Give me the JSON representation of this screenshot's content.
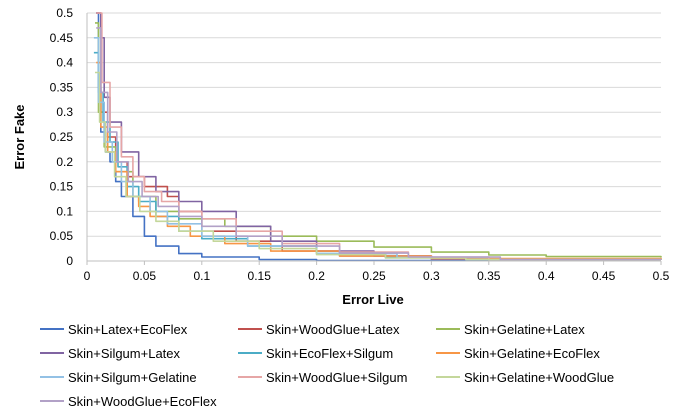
{
  "chart_data": {
    "type": "line",
    "title": "",
    "xlabel": "Error Live",
    "ylabel": "Error Fake",
    "xlim": [
      0,
      0.5
    ],
    "ylim": [
      0,
      0.5
    ],
    "x_ticks": [
      "0",
      "0.05",
      "0.1",
      "0.15",
      "0.2",
      "0.25",
      "0.3",
      "0.35",
      "0.4",
      "0.45",
      "0.5"
    ],
    "y_ticks": [
      "0",
      "0.05",
      "0.1",
      "0.15",
      "0.2",
      "0.25",
      "0.3",
      "0.35",
      "0.4",
      "0.45",
      "0.5"
    ],
    "grid": "horizontal",
    "legend_position": "bottom",
    "series": [
      {
        "name": "Skin+Latex+EcoFlex",
        "color": "#4472c4",
        "points": [
          [
            0.008,
            0.5
          ],
          [
            0.01,
            0.35
          ],
          [
            0.012,
            0.26
          ],
          [
            0.016,
            0.22
          ],
          [
            0.02,
            0.2
          ],
          [
            0.025,
            0.16
          ],
          [
            0.03,
            0.13
          ],
          [
            0.04,
            0.09
          ],
          [
            0.05,
            0.05
          ],
          [
            0.06,
            0.03
          ],
          [
            0.08,
            0.015
          ],
          [
            0.1,
            0.008
          ],
          [
            0.15,
            0.003
          ],
          [
            0.2,
            0.001
          ],
          [
            0.5,
            0.001
          ]
        ]
      },
      {
        "name": "Skin+WoodGlue+Latex",
        "color": "#c0504d",
        "points": [
          [
            0.008,
            0.5
          ],
          [
            0.012,
            0.3
          ],
          [
            0.018,
            0.25
          ],
          [
            0.025,
            0.2
          ],
          [
            0.035,
            0.17
          ],
          [
            0.05,
            0.15
          ],
          [
            0.07,
            0.13
          ],
          [
            0.08,
            0.1
          ],
          [
            0.1,
            0.06
          ],
          [
            0.13,
            0.04
          ],
          [
            0.17,
            0.02
          ],
          [
            0.22,
            0.01
          ],
          [
            0.3,
            0.004
          ],
          [
            0.5,
            0.002
          ]
        ]
      },
      {
        "name": "Skin+Gelatine+Latex",
        "color": "#9bbb59",
        "points": [
          [
            0.007,
            0.48
          ],
          [
            0.01,
            0.3
          ],
          [
            0.015,
            0.23
          ],
          [
            0.025,
            0.18
          ],
          [
            0.04,
            0.13
          ],
          [
            0.06,
            0.1
          ],
          [
            0.08,
            0.085
          ],
          [
            0.12,
            0.07
          ],
          [
            0.16,
            0.05
          ],
          [
            0.2,
            0.04
          ],
          [
            0.25,
            0.028
          ],
          [
            0.3,
            0.018
          ],
          [
            0.35,
            0.012
          ],
          [
            0.4,
            0.009
          ],
          [
            0.5,
            0.007
          ]
        ]
      },
      {
        "name": "Skin+Silgum+Latex",
        "color": "#8064a2",
        "points": [
          [
            0.008,
            0.5
          ],
          [
            0.012,
            0.45
          ],
          [
            0.015,
            0.33
          ],
          [
            0.02,
            0.28
          ],
          [
            0.03,
            0.22
          ],
          [
            0.045,
            0.17
          ],
          [
            0.06,
            0.14
          ],
          [
            0.08,
            0.12
          ],
          [
            0.1,
            0.1
          ],
          [
            0.13,
            0.07
          ],
          [
            0.16,
            0.04
          ],
          [
            0.2,
            0.02
          ],
          [
            0.25,
            0.01
          ],
          [
            0.3,
            0.004
          ],
          [
            0.5,
            0.002
          ]
        ]
      },
      {
        "name": "Skin+EcoFlex+Silgum",
        "color": "#4bacc6",
        "points": [
          [
            0.006,
            0.42
          ],
          [
            0.01,
            0.34
          ],
          [
            0.014,
            0.28
          ],
          [
            0.02,
            0.24
          ],
          [
            0.027,
            0.19
          ],
          [
            0.035,
            0.15
          ],
          [
            0.045,
            0.12
          ],
          [
            0.06,
            0.09
          ],
          [
            0.08,
            0.06
          ],
          [
            0.1,
            0.045
          ],
          [
            0.14,
            0.03
          ],
          [
            0.2,
            0.015
          ],
          [
            0.26,
            0.007
          ],
          [
            0.35,
            0.003
          ],
          [
            0.5,
            0.002
          ]
        ]
      },
      {
        "name": "Skin+Gelatine+EcoFlex",
        "color": "#f79646",
        "points": [
          [
            0.008,
            0.4
          ],
          [
            0.012,
            0.27
          ],
          [
            0.018,
            0.22
          ],
          [
            0.025,
            0.18
          ],
          [
            0.035,
            0.13
          ],
          [
            0.045,
            0.11
          ],
          [
            0.055,
            0.09
          ],
          [
            0.07,
            0.07
          ],
          [
            0.09,
            0.05
          ],
          [
            0.12,
            0.035
          ],
          [
            0.16,
            0.02
          ],
          [
            0.22,
            0.01
          ],
          [
            0.3,
            0.005
          ],
          [
            0.5,
            0.002
          ]
        ]
      },
      {
        "name": "Skin+Silgum+Gelatine",
        "color": "#93c1e5",
        "points": [
          [
            0.006,
            0.45
          ],
          [
            0.01,
            0.32
          ],
          [
            0.015,
            0.24
          ],
          [
            0.022,
            0.2
          ],
          [
            0.03,
            0.16
          ],
          [
            0.04,
            0.13
          ],
          [
            0.055,
            0.1
          ],
          [
            0.07,
            0.075
          ],
          [
            0.1,
            0.05
          ],
          [
            0.14,
            0.03
          ],
          [
            0.2,
            0.015
          ],
          [
            0.27,
            0.007
          ],
          [
            0.35,
            0.003
          ],
          [
            0.5,
            0.002
          ]
        ]
      },
      {
        "name": "Skin+WoodGlue+Silgum",
        "color": "#e6a6a6",
        "points": [
          [
            0.008,
            0.5
          ],
          [
            0.013,
            0.36
          ],
          [
            0.02,
            0.27
          ],
          [
            0.03,
            0.21
          ],
          [
            0.04,
            0.17
          ],
          [
            0.05,
            0.14
          ],
          [
            0.065,
            0.12
          ],
          [
            0.08,
            0.1
          ],
          [
            0.1,
            0.085
          ],
          [
            0.13,
            0.06
          ],
          [
            0.17,
            0.035
          ],
          [
            0.22,
            0.018
          ],
          [
            0.28,
            0.008
          ],
          [
            0.35,
            0.003
          ],
          [
            0.5,
            0.002
          ]
        ]
      },
      {
        "name": "Skin+Gelatine+WoodGlue",
        "color": "#c4d79b",
        "points": [
          [
            0.007,
            0.38
          ],
          [
            0.011,
            0.28
          ],
          [
            0.016,
            0.22
          ],
          [
            0.024,
            0.17
          ],
          [
            0.034,
            0.13
          ],
          [
            0.046,
            0.1
          ],
          [
            0.06,
            0.08
          ],
          [
            0.08,
            0.06
          ],
          [
            0.11,
            0.04
          ],
          [
            0.15,
            0.025
          ],
          [
            0.2,
            0.013
          ],
          [
            0.26,
            0.006
          ],
          [
            0.33,
            0.003
          ],
          [
            0.5,
            0.002
          ]
        ]
      },
      {
        "name": "Skin+WoodGlue+EcoFlex",
        "color": "#b2a1c7",
        "points": [
          [
            0.008,
            0.47
          ],
          [
            0.012,
            0.34
          ],
          [
            0.018,
            0.26
          ],
          [
            0.026,
            0.2
          ],
          [
            0.036,
            0.16
          ],
          [
            0.048,
            0.13
          ],
          [
            0.062,
            0.11
          ],
          [
            0.08,
            0.09
          ],
          [
            0.1,
            0.07
          ],
          [
            0.13,
            0.05
          ],
          [
            0.17,
            0.03
          ],
          [
            0.22,
            0.016
          ],
          [
            0.28,
            0.008
          ],
          [
            0.36,
            0.003
          ],
          [
            0.5,
            0.002
          ]
        ]
      }
    ]
  }
}
